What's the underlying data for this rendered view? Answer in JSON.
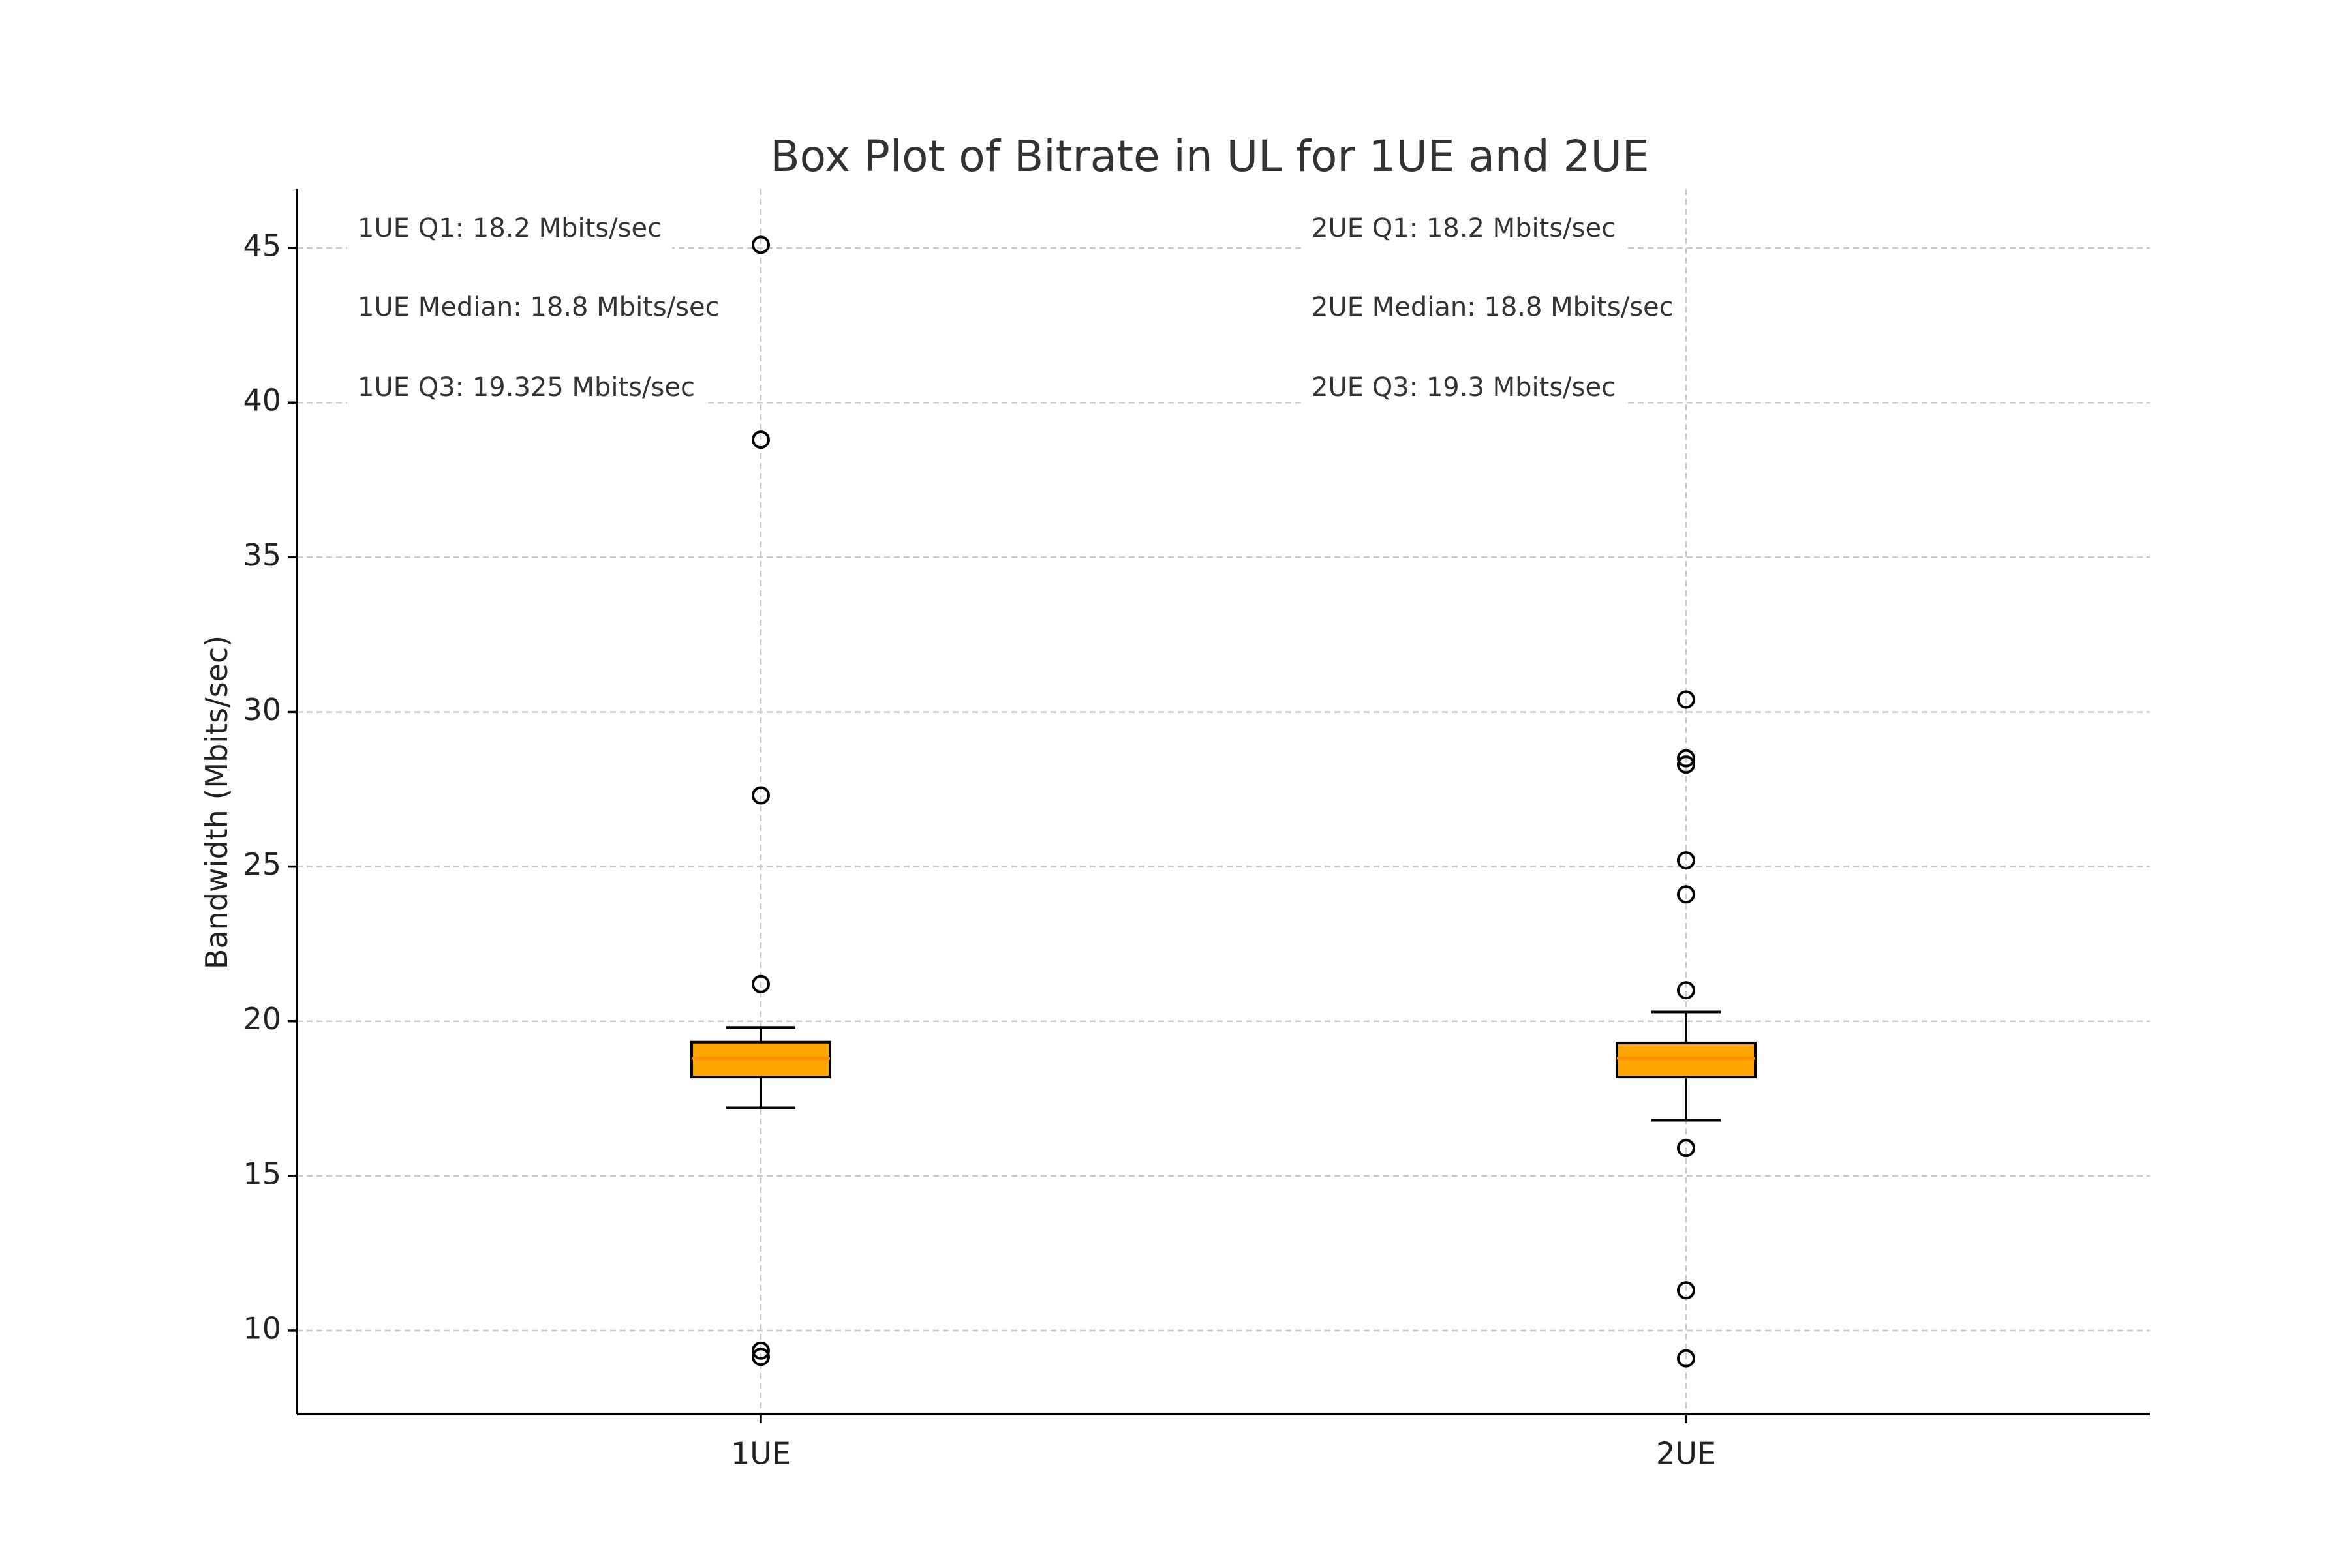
{
  "chart_data": {
    "type": "box",
    "title": "Box Plot of Bitrate in UL for 1UE and 2UE",
    "xlabel": "",
    "ylabel": "Bandwidth (Mbits/sec)",
    "ylim": [
      7.3,
      46.9
    ],
    "yticks": [
      10,
      15,
      20,
      25,
      30,
      35,
      40,
      45
    ],
    "grid": true,
    "categories": [
      "1UE",
      "2UE"
    ],
    "box_color": "#FFA500",
    "median_color": "#FF8C00",
    "series": [
      {
        "category": "1UE",
        "q1": 18.2,
        "median": 18.8,
        "q3": 19.325,
        "whisker_low": 17.2,
        "whisker_high": 19.8,
        "outliers": [
          45.1,
          38.8,
          27.3,
          21.2,
          9.35,
          9.15
        ]
      },
      {
        "category": "2UE",
        "q1": 18.2,
        "median": 18.8,
        "q3": 19.3,
        "whisker_low": 16.8,
        "whisker_high": 20.3,
        "outliers": [
          30.4,
          28.5,
          28.3,
          25.2,
          24.1,
          21.0,
          15.9,
          11.3,
          9.1
        ]
      }
    ],
    "annotations": [
      {
        "group": 0,
        "text": "1UE Q1: 18.2 Mbits/sec"
      },
      {
        "group": 0,
        "text": "1UE Median: 18.8 Mbits/sec"
      },
      {
        "group": 0,
        "text": "1UE Q3: 19.325 Mbits/sec"
      },
      {
        "group": 1,
        "text": "2UE Q1: 18.2 Mbits/sec"
      },
      {
        "group": 1,
        "text": "2UE Median: 18.8 Mbits/sec"
      },
      {
        "group": 1,
        "text": "2UE Q3: 19.3 Mbits/sec"
      }
    ]
  }
}
